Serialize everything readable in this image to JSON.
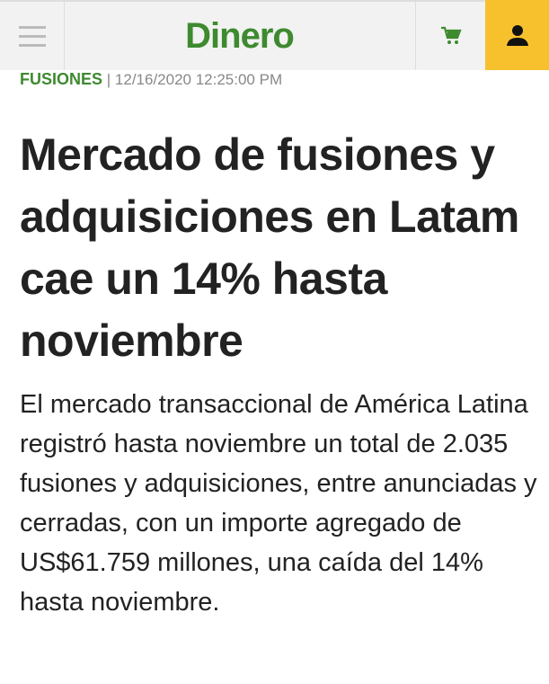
{
  "header": {
    "logo": "Dinero",
    "menu_icon": "hamburger-icon",
    "cart_icon": "shopping-cart-icon",
    "user_icon": "user-icon",
    "brand_color": "#3e8a2f",
    "accent_color": "#f7c12e"
  },
  "article": {
    "category": "FUSIONES",
    "separator": "|",
    "timestamp": "12/16/2020 12:25:00 PM",
    "title": "Mercado de fusiones y adquisiciones en Latam cae un 14% hasta noviembre",
    "lead": "El mercado transaccional de América Latina registró hasta noviembre un total de 2.035 fusiones y adquisiciones, entre anunciadas y cerradas, con un importe agregado de US$61.759 millones, una caída del 14% hasta noviembre."
  }
}
